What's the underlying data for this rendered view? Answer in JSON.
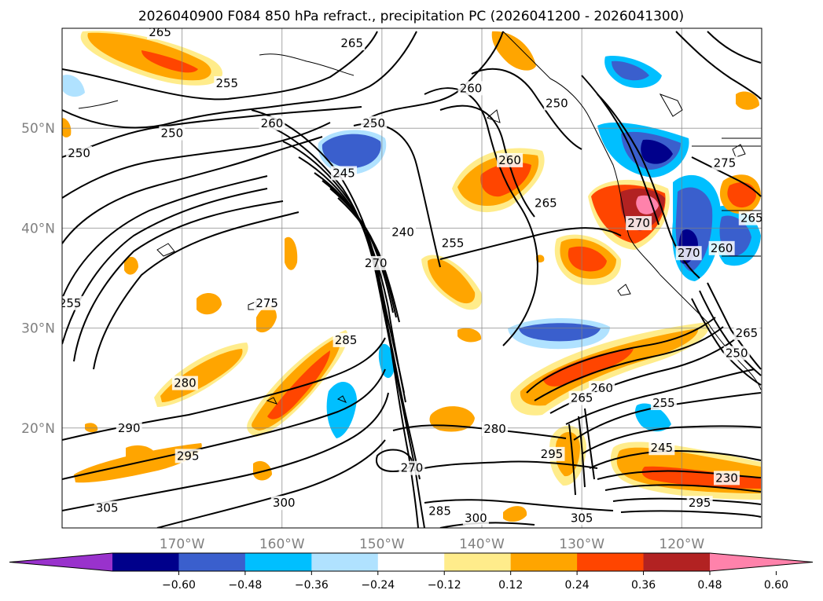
{
  "chart_data": {
    "type": "heatmap",
    "title": "2026040900 F084 850 hPa refract., precipitation PC (2026041200 - 2026041300)",
    "x_range": [
      -182,
      -112
    ],
    "y_range": [
      10,
      60
    ],
    "lat_ticks": [
      {
        "value": 50,
        "label": "50°N"
      },
      {
        "value": 40,
        "label": "40°N"
      },
      {
        "value": 30,
        "label": "30°N"
      },
      {
        "value": 20,
        "label": "20°N"
      }
    ],
    "lon_ticks": [
      {
        "value": -170,
        "label": "170°W"
      },
      {
        "value": -160,
        "label": "160°W"
      },
      {
        "value": -150,
        "label": "150°W"
      },
      {
        "value": -140,
        "label": "140°W"
      },
      {
        "value": -130,
        "label": "130°W"
      },
      {
        "value": -120,
        "label": "120°W"
      }
    ],
    "colorbar": {
      "levels": [
        "−0.60",
        "−0.48",
        "−0.36",
        "−0.24",
        "−0.12",
        "0.12",
        "0.24",
        "0.36",
        "0.48",
        "0.60"
      ],
      "colors": [
        "#9932cc",
        "#00008b",
        "#3a5fcd",
        "#00bfff",
        "#b0e2ff",
        "#ffffff",
        "#ffec8b",
        "#ffa500",
        "#ff4500",
        "#b22222",
        "#ff82ab"
      ]
    },
    "contour_labels": [
      {
        "text": "265",
        "lon": -172.2,
        "lat": 59.6
      },
      {
        "text": "255",
        "lon": -165.5,
        "lat": 54.5
      },
      {
        "text": "250",
        "lon": -171.0,
        "lat": 49.5
      },
      {
        "text": "260",
        "lon": -161.0,
        "lat": 50.5
      },
      {
        "text": "265",
        "lon": -153.0,
        "lat": 58.5
      },
      {
        "text": "250",
        "lon": -150.8,
        "lat": 50.5
      },
      {
        "text": "245",
        "lon": -153.8,
        "lat": 45.5
      },
      {
        "text": "240",
        "lon": -147.9,
        "lat": 39.6
      },
      {
        "text": "270",
        "lon": -150.6,
        "lat": 36.5
      },
      {
        "text": "260",
        "lon": -141.1,
        "lat": 54.0
      },
      {
        "text": "250",
        "lon": -132.5,
        "lat": 52.5
      },
      {
        "text": "260",
        "lon": -137.2,
        "lat": 46.8
      },
      {
        "text": "265",
        "lon": -133.6,
        "lat": 42.5
      },
      {
        "text": "255",
        "lon": -142.9,
        "lat": 38.5
      },
      {
        "text": "250",
        "lon": -180.3,
        "lat": 47.5
      },
      {
        "text": "275",
        "lon": -161.5,
        "lat": 32.5
      },
      {
        "text": "255",
        "lon": -181.2,
        "lat": 32.5
      },
      {
        "text": "285",
        "lon": -153.6,
        "lat": 28.8
      },
      {
        "text": "280",
        "lon": -169.7,
        "lat": 24.5
      },
      {
        "text": "290",
        "lon": -175.3,
        "lat": 20.0
      },
      {
        "text": "295",
        "lon": -169.4,
        "lat": 17.2
      },
      {
        "text": "305",
        "lon": -177.5,
        "lat": 12.0
      },
      {
        "text": "300",
        "lon": -159.8,
        "lat": 12.5
      },
      {
        "text": "270",
        "lon": -147.0,
        "lat": 16.0
      },
      {
        "text": "285",
        "lon": -144.2,
        "lat": 11.7
      },
      {
        "text": "300",
        "lon": -140.6,
        "lat": 11.0
      },
      {
        "text": "280",
        "lon": -138.7,
        "lat": 19.9
      },
      {
        "text": "295",
        "lon": -133.0,
        "lat": 17.4
      },
      {
        "text": "305",
        "lon": -130.0,
        "lat": 11.0
      },
      {
        "text": "260",
        "lon": -128.0,
        "lat": 24.0
      },
      {
        "text": "265",
        "lon": -130.0,
        "lat": 23.0
      },
      {
        "text": "255",
        "lon": -121.8,
        "lat": 22.5
      },
      {
        "text": "245",
        "lon": -122.0,
        "lat": 18.0
      },
      {
        "text": "230",
        "lon": -115.5,
        "lat": 15.0
      },
      {
        "text": "295",
        "lon": -118.2,
        "lat": 12.5
      },
      {
        "text": "275",
        "lon": -115.7,
        "lat": 46.5
      },
      {
        "text": "270",
        "lon": -124.3,
        "lat": 40.5
      },
      {
        "text": "270",
        "lon": -119.3,
        "lat": 37.5
      },
      {
        "text": "260",
        "lon": -116.0,
        "lat": 38.0
      },
      {
        "text": "265",
        "lon": -113.0,
        "lat": 41.0
      },
      {
        "text": "265",
        "lon": -113.5,
        "lat": 29.5
      },
      {
        "text": "250",
        "lon": -114.5,
        "lat": 27.5
      }
    ]
  }
}
